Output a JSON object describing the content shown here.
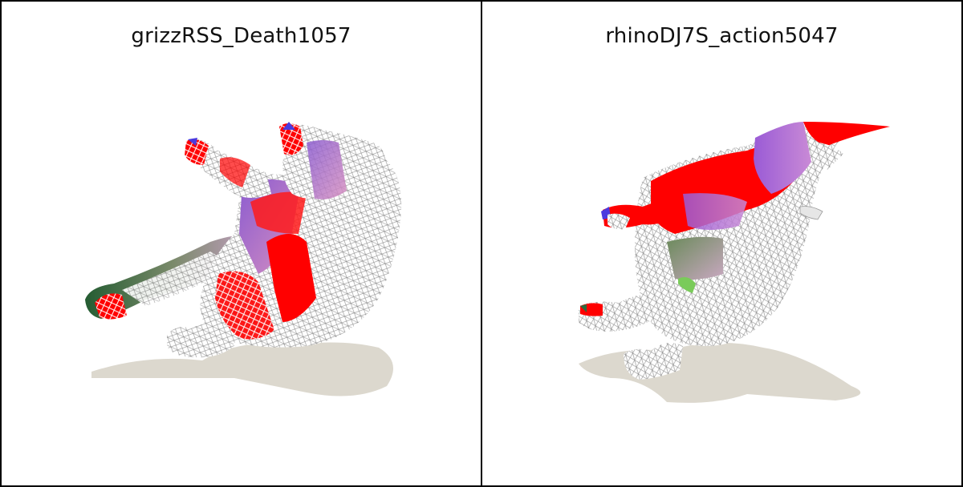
{
  "panels": [
    {
      "title": "grizzRSS_Death1057",
      "figure": "bear-mesh-render"
    },
    {
      "title": "rhinoDJ7S_action5047",
      "figure": "rhino-mesh-render"
    }
  ],
  "colors": {
    "background": "#ffffff",
    "border": "#000000",
    "shadow": "#d9d6cc",
    "mesh_red": "#ff0000",
    "mesh_purple": "#b86bd6",
    "mesh_green": "#2e6b3e",
    "mesh_blue": "#4a3adf",
    "wireframe": "#ffffff"
  }
}
